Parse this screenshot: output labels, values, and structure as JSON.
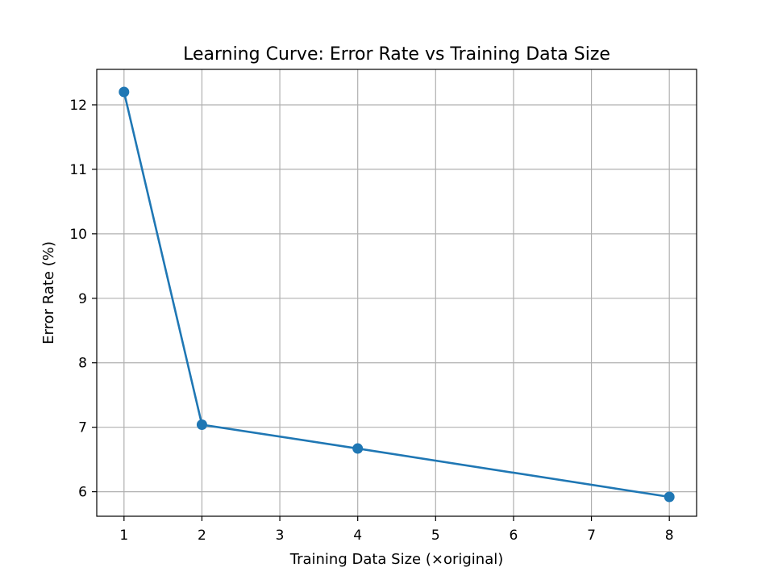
{
  "chart_data": {
    "type": "line",
    "title": "Learning Curve: Error Rate vs Training Data Size",
    "xlabel": "Training Data Size (×original)",
    "ylabel": "Error Rate (%)",
    "xlim": [
      0.65,
      8.35
    ],
    "ylim": [
      5.62,
      12.55
    ],
    "xticks": [
      1,
      2,
      3,
      4,
      5,
      6,
      7,
      8
    ],
    "yticks": [
      6,
      7,
      8,
      9,
      10,
      11,
      12
    ],
    "grid": true,
    "series": [
      {
        "x": [
          1,
          2,
          4,
          8
        ],
        "y": [
          12.2,
          7.04,
          6.67,
          5.92
        ],
        "color": "#1f77b4",
        "marker": "circle"
      }
    ]
  }
}
